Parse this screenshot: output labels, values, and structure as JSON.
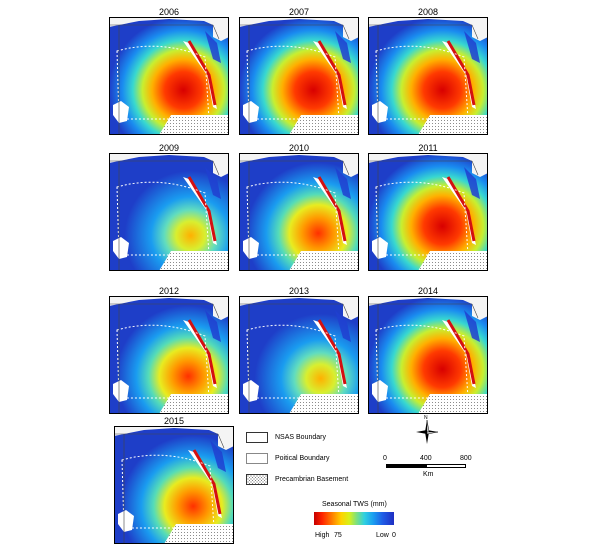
{
  "panels": [
    {
      "year": "2006"
    },
    {
      "year": "2007"
    },
    {
      "year": "2008"
    },
    {
      "year": "2009"
    },
    {
      "year": "2010"
    },
    {
      "year": "2011"
    },
    {
      "year": "2012"
    },
    {
      "year": "2013"
    },
    {
      "year": "2014"
    },
    {
      "year": "2015"
    }
  ],
  "legend": {
    "items": [
      {
        "label": "NSAS Boundary"
      },
      {
        "label": "Poitical Boundary"
      },
      {
        "label": "Precambrian Basement"
      }
    ]
  },
  "scale_bar": {
    "ticks": [
      "0",
      "400",
      "800"
    ],
    "unit": "Km"
  },
  "north_arrow": {
    "label": "N"
  },
  "colorbar": {
    "title": "Seasonal TWS (mm)",
    "high_label": "High",
    "high_value": "75",
    "low_label": "Low",
    "low_value": "0"
  },
  "colors": {
    "high": "#c40000",
    "mid": "#ffd200",
    "low": "#1f2ec2"
  }
}
